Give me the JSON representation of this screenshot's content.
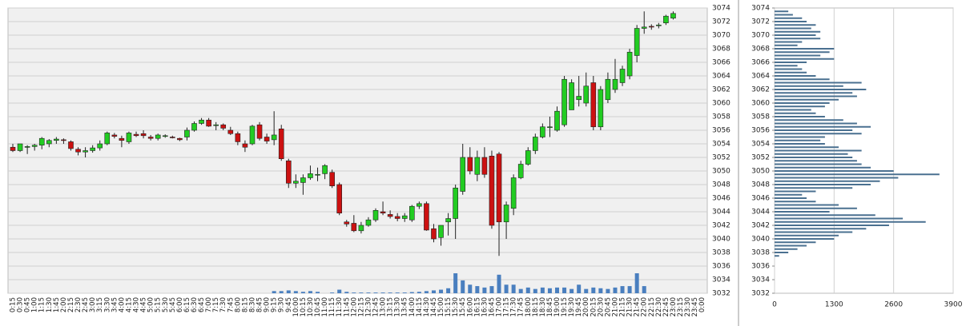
{
  "chart_data": [
    {
      "type": "candlestick",
      "x": [
        "0:15",
        "0:30",
        "0:45",
        "1:00",
        "1:15",
        "1:30",
        "1:45",
        "2:00",
        "2:15",
        "2:30",
        "2:45",
        "3:00",
        "3:15",
        "3:30",
        "3:45",
        "4:00",
        "4:15",
        "4:30",
        "4:45",
        "5:00",
        "5:15",
        "5:30",
        "5:45",
        "6:00",
        "6:15",
        "6:30",
        "6:45",
        "7:00",
        "7:15",
        "7:30",
        "7:45",
        "8:00",
        "8:15",
        "8:30",
        "8:45",
        "9:00",
        "9:15",
        "9:30",
        "9:45",
        "10:00",
        "10:15",
        "10:30",
        "10:45",
        "11:00",
        "11:15",
        "11:30",
        "11:45",
        "12:00",
        "12:15",
        "12:30",
        "12:45",
        "13:00",
        "13:15",
        "13:30",
        "13:45",
        "14:00",
        "14:15",
        "14:30",
        "14:45",
        "15:00",
        "15:15",
        "15:30",
        "15:45",
        "16:00",
        "16:15",
        "16:30",
        "16:45",
        "17:00",
        "17:15",
        "17:30",
        "17:45",
        "18:00",
        "18:15",
        "18:30",
        "18:45",
        "19:00",
        "19:15",
        "19:30",
        "19:45",
        "20:00",
        "20:15",
        "20:30",
        "20:45",
        "21:00",
        "21:15",
        "21:30",
        "21:45",
        "22:00",
        "22:15",
        "22:30",
        "22:45",
        "23:00",
        "23:15",
        "23:30",
        "23:45",
        "0:00"
      ],
      "open": [
        3053.5,
        3053,
        3053.5,
        3053.6,
        3053.8,
        3054,
        3054.5,
        3054.6,
        3054.3,
        3053.2,
        3052.8,
        3053,
        3053.4,
        3054,
        3055.3,
        3054.8,
        3054.3,
        3055.4,
        3055.5,
        3055,
        3054.8,
        3055.1,
        3055,
        3054.8,
        3055,
        3056,
        3057,
        3057.5,
        3056.7,
        3056.8,
        3056,
        3055.5,
        3054,
        3054,
        3056.8,
        3055,
        3054.6,
        3056.2,
        3051.5,
        3048.2,
        3048.3,
        3049,
        3049.4,
        3049.6,
        3049.8,
        3048,
        3042.5,
        3042.3,
        3041.2,
        3042,
        3042.8,
        3044,
        3043.6,
        3043.3,
        3043,
        3042.8,
        3044.8,
        3045.2,
        3041.5,
        3040.2,
        3042.5,
        3043,
        3047,
        3052,
        3049.5,
        3052,
        3052.2,
        3052.5,
        3042.5,
        3044.5,
        3049,
        3051,
        3053,
        3055,
        3056.5,
        3056,
        3056.8,
        3059,
        3060.5,
        3060,
        3063,
        3056.5,
        3060.5,
        3062,
        3063,
        3064,
        3067,
        3071,
        3071.3,
        3071.4,
        3071.8,
        3072.5,
        null,
        null,
        null,
        null
      ],
      "high": [
        3054,
        3054,
        3053.8,
        3054,
        3055,
        3054.7,
        3055,
        3054.8,
        3054.5,
        3053.5,
        3053.5,
        3053.8,
        3054.5,
        3055.8,
        3055.6,
        3055.2,
        3055.8,
        3055.8,
        3056,
        3055.3,
        3055.5,
        3055.4,
        3055.2,
        3054.9,
        3056.4,
        3057.3,
        3057.8,
        3057.8,
        3057.2,
        3057,
        3056.5,
        3055.8,
        3054.5,
        3056.8,
        3057.2,
        3055.5,
        3058.8,
        3056.8,
        3051.8,
        3049.5,
        3049.5,
        3050.8,
        3050.5,
        3051,
        3050.2,
        3048.3,
        3042.8,
        3043.5,
        3042.5,
        3043.2,
        3044.5,
        3045.5,
        3044.2,
        3043.8,
        3043.8,
        3045,
        3045.5,
        3045.5,
        3042.2,
        3042,
        3043.8,
        3048,
        3054,
        3053.5,
        3053,
        3053.5,
        3053,
        3052.8,
        3045.5,
        3049.5,
        3051.5,
        3053.5,
        3055.5,
        3057,
        3058,
        3059.5,
        3064,
        3063.5,
        3064,
        3064.5,
        3064,
        3062.5,
        3064.5,
        3066.5,
        3065.5,
        3068,
        3071.5,
        3073.5,
        3071.6,
        3071.8,
        3073,
        3073.5,
        null,
        null,
        null,
        null
      ],
      "low": [
        3052.8,
        3052.8,
        3052.5,
        3053,
        3053.2,
        3053.5,
        3054,
        3054,
        3053,
        3052.3,
        3052,
        3052.7,
        3053,
        3053.8,
        3054.8,
        3053.5,
        3054,
        3055,
        3054.8,
        3054.5,
        3054.5,
        3054.9,
        3054.8,
        3054.4,
        3054.5,
        3055.8,
        3056.8,
        3056.5,
        3056,
        3056,
        3055.3,
        3053.8,
        3052.8,
        3053.8,
        3054.5,
        3054,
        3053.8,
        3051.5,
        3047.5,
        3047.5,
        3046.5,
        3048.7,
        3048.5,
        3048.8,
        3047.5,
        3043.5,
        3041.8,
        3041,
        3040.8,
        3041.8,
        3042.5,
        3043.5,
        3043,
        3042.6,
        3042.5,
        3042.5,
        3044.4,
        3041.2,
        3039.5,
        3039,
        3040.5,
        3040,
        3046.5,
        3049.5,
        3048.5,
        3049,
        3041.5,
        3037.5,
        3040,
        3043.5,
        3048.8,
        3050.8,
        3052.5,
        3054.8,
        3055,
        3055.8,
        3056.5,
        3059,
        3059.5,
        3059.5,
        3056,
        3056,
        3060,
        3061.5,
        3062.5,
        3063.5,
        3066,
        3070.2,
        3070.8,
        3071,
        3071.5,
        3072.3,
        null,
        null,
        null,
        null
      ],
      "close": [
        3053,
        3054,
        3053.6,
        3053.8,
        3054.8,
        3054.5,
        3054.7,
        3054.5,
        3053.3,
        3052.8,
        3053,
        3053.4,
        3054,
        3055.6,
        3055.1,
        3054.5,
        3055.6,
        3055.2,
        3055.2,
        3054.8,
        3055.3,
        3055.2,
        3054.9,
        3054.6,
        3056,
        3057,
        3057.5,
        3056.6,
        3056.8,
        3056.3,
        3055.5,
        3054.3,
        3053.5,
        3056.6,
        3054.8,
        3054.4,
        3055.3,
        3051.8,
        3048.2,
        3048.5,
        3049,
        3049.6,
        3049.5,
        3050.8,
        3047.8,
        3043.8,
        3042.2,
        3041.2,
        3042,
        3042.8,
        3044.2,
        3043.8,
        3043.3,
        3043,
        3043.4,
        3044.8,
        3045.2,
        3041.3,
        3040,
        3042,
        3043,
        3047.5,
        3052,
        3050,
        3052,
        3049.5,
        3042,
        3042.5,
        3045,
        3049,
        3051,
        3053,
        3055,
        3056.5,
        3056.5,
        3058.8,
        3063.5,
        3063,
        3061,
        3062.5,
        3056.5,
        3062,
        3063.5,
        3063.5,
        3065,
        3067.5,
        3071,
        3071.2,
        3071.2,
        3071.5,
        3072.8,
        3073.2,
        null,
        null,
        null,
        null
      ],
      "volume": [
        0,
        0,
        0,
        0,
        0,
        0,
        0,
        0,
        0,
        0,
        0,
        0,
        0,
        0,
        0,
        0,
        0,
        0,
        0,
        0,
        0,
        0,
        0,
        0,
        0,
        0,
        0,
        0,
        0,
        0,
        0,
        0,
        0,
        0,
        0,
        0,
        150,
        150,
        200,
        150,
        100,
        150,
        100,
        0,
        50,
        250,
        100,
        50,
        50,
        50,
        50,
        50,
        50,
        50,
        50,
        80,
        100,
        150,
        200,
        250,
        350,
        1400,
        900,
        600,
        500,
        400,
        500,
        1300,
        600,
        600,
        300,
        400,
        300,
        400,
        350,
        400,
        400,
        300,
        600,
        300,
        400,
        350,
        300,
        400,
        500,
        500,
        1400,
        500,
        0,
        0,
        0,
        0,
        null,
        null,
        null,
        null
      ],
      "volume_lim": [
        0,
        20000
      ],
      "up_color": "#22cc22",
      "down_color": "#cc1111",
      "volume_color": "#4a7fbf",
      "ylim": [
        3032,
        3074
      ],
      "yticks": [
        3032,
        3034,
        3036,
        3038,
        3040,
        3042,
        3044,
        3046,
        3048,
        3050,
        3052,
        3054,
        3056,
        3058,
        3060,
        3062,
        3064,
        3066,
        3068,
        3070,
        3072,
        3074
      ],
      "grid": true
    },
    {
      "type": "profile",
      "y": [
        3073.5,
        3073,
        3072.5,
        3072,
        3071.5,
        3071,
        3070.5,
        3070,
        3069.5,
        3069,
        3068.5,
        3068,
        3067.5,
        3067,
        3066.5,
        3066,
        3065.5,
        3065,
        3064.5,
        3064,
        3063.5,
        3063,
        3062.5,
        3062,
        3061.5,
        3061,
        3060.5,
        3060,
        3059.5,
        3059,
        3058.5,
        3058,
        3057.5,
        3057,
        3056.5,
        3056,
        3055.5,
        3055,
        3054.5,
        3054,
        3053.5,
        3053,
        3052.5,
        3052,
        3051.5,
        3051,
        3050.5,
        3050,
        3049.5,
        3049,
        3048.5,
        3048,
        3047.5,
        3047,
        3046.5,
        3046,
        3045.5,
        3045,
        3044.5,
        3044,
        3043.5,
        3043,
        3042.5,
        3042,
        3041.5,
        3041,
        3040.5,
        3040,
        3039.5,
        3039,
        3038.5,
        3038,
        3037.5
      ],
      "values": [
        300,
        400,
        600,
        700,
        900,
        800,
        1000,
        900,
        1000,
        600,
        500,
        1300,
        1200,
        1000,
        1300,
        700,
        500,
        600,
        700,
        900,
        1200,
        1900,
        1500,
        2000,
        1700,
        1800,
        1400,
        1200,
        1100,
        800,
        900,
        1100,
        1500,
        1800,
        2100,
        1700,
        1900,
        1100,
        1000,
        1100,
        1400,
        1900,
        1600,
        1700,
        1800,
        1900,
        2100,
        2600,
        3600,
        2700,
        2300,
        2100,
        1700,
        900,
        600,
        700,
        900,
        1400,
        1800,
        1200,
        2200,
        2800,
        3300,
        2500,
        2000,
        1700,
        1400,
        1300,
        900,
        700,
        500,
        300,
        100
      ],
      "color": "#4a7090",
      "xlim": [
        0,
        3900
      ],
      "xticks": [
        0,
        1300,
        2600,
        3900
      ],
      "ylim": [
        3032,
        3074
      ],
      "yticks": [
        3032,
        3034,
        3036,
        3038,
        3040,
        3042,
        3044,
        3046,
        3048,
        3050,
        3052,
        3054,
        3056,
        3058,
        3060,
        3062,
        3064,
        3066,
        3068,
        3070,
        3072,
        3074
      ],
      "grid": true
    }
  ]
}
